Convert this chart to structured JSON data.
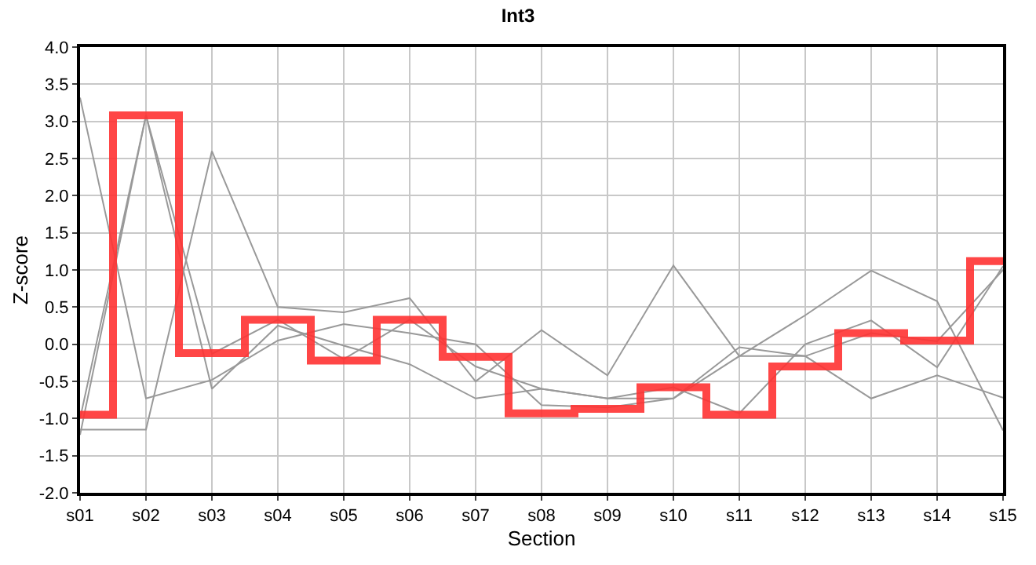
{
  "chart_data": {
    "type": "line",
    "title": "Int3",
    "xlabel": "Section",
    "ylabel": "Z-score",
    "categories": [
      "s01",
      "s02",
      "s03",
      "s04",
      "s05",
      "s06",
      "s07",
      "s08",
      "s09",
      "s10",
      "s11",
      "s12",
      "s13",
      "s14",
      "s15"
    ],
    "series": [
      {
        "color": "#999999",
        "values": [
          3.32,
          -0.73,
          -0.48,
          0.05,
          0.27,
          0.15,
          0.0,
          -0.82,
          -0.85,
          -0.73,
          -0.16,
          -0.16,
          -0.73,
          -0.42,
          -0.72
        ]
      },
      {
        "color": "#999999",
        "values": [
          -1.15,
          -1.15,
          2.6,
          0.5,
          0.43,
          0.62,
          -0.5,
          0.19,
          -0.42,
          1.06,
          -0.16,
          0.39,
          0.99,
          0.58,
          -1.16
        ]
      },
      {
        "color": "#999999",
        "values": [
          -1.0,
          3.08,
          -0.13,
          0.33,
          -0.2,
          0.33,
          -0.3,
          -0.6,
          -0.73,
          -0.58,
          -0.93,
          0.0,
          0.32,
          -0.31,
          1.05
        ]
      },
      {
        "color": "#999999",
        "values": [
          -1.22,
          3.08,
          -0.6,
          0.25,
          -0.02,
          -0.27,
          -0.73,
          -0.6,
          -0.73,
          -0.73,
          -0.04,
          -0.16,
          0.15,
          0.04,
          1.0
        ]
      },
      {
        "type": "step",
        "color": "#ff3333",
        "values": [
          -0.95,
          3.08,
          -0.12,
          0.33,
          -0.22,
          0.33,
          -0.17,
          -0.93,
          -0.87,
          -0.58,
          -0.95,
          -0.3,
          0.15,
          0.05,
          1.12
        ]
      }
    ],
    "ylim": [
      -2.0,
      4.0
    ],
    "yticks": [
      {
        "value": -2,
        "label": "-2.0"
      },
      {
        "value": -1.5,
        "label": "-1.5"
      },
      {
        "value": -1,
        "label": "-1.0"
      },
      {
        "value": -0.5,
        "label": "-0.5"
      },
      {
        "value": 0,
        "label": "0.0"
      },
      {
        "value": 0.5,
        "label": "0.5"
      },
      {
        "value": 1,
        "label": "1.0"
      },
      {
        "value": 1.5,
        "label": "1.5"
      },
      {
        "value": 2,
        "label": "2.0"
      },
      {
        "value": 2.5,
        "label": "2.5"
      },
      {
        "value": 3,
        "label": "3.0"
      },
      {
        "value": 3.5,
        "label": "3.5"
      },
      {
        "value": 4,
        "label": "4.0"
      }
    ],
    "grid": true,
    "marker": "none"
  }
}
